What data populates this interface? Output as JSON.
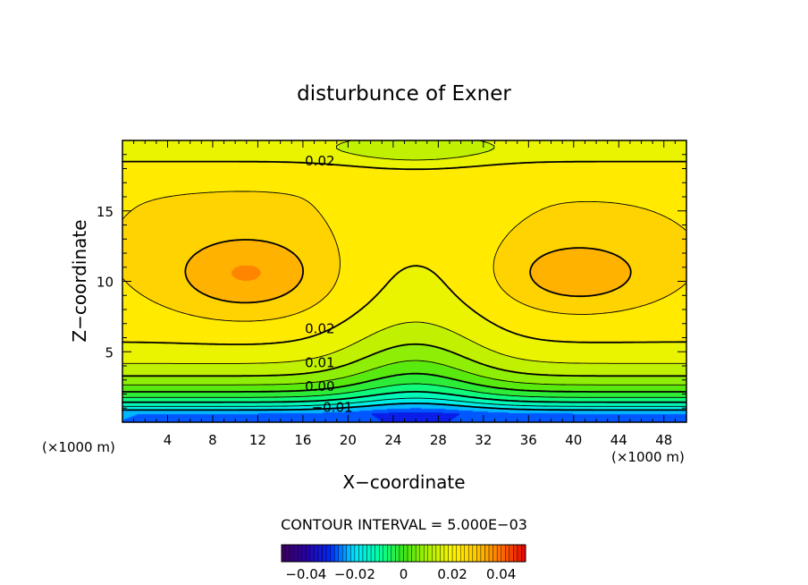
{
  "chart_data": {
    "type": "contour",
    "title": "disturbunce of Exner",
    "xlabel": "X−coordinate",
    "ylabel": "Z−coordinate",
    "x_unit_label": "(×1000 m)",
    "z_unit_label": "(×1000 m)",
    "xlim": [
      0,
      50
    ],
    "ylim": [
      0,
      20
    ],
    "x_ticks": [
      4,
      8,
      12,
      16,
      20,
      24,
      28,
      32,
      36,
      40,
      44,
      48
    ],
    "x_tick_labels": [
      "4",
      "8",
      "12",
      "16",
      "20",
      "24",
      "28",
      "32",
      "36",
      "40",
      "44",
      "48"
    ],
    "y_ticks": [
      5,
      10,
      15
    ],
    "y_tick_labels": [
      "5",
      "10",
      "15"
    ],
    "contour_interval_text": "CONTOUR INTERVAL = 5.000E−03",
    "contour_labels": [
      {
        "text": "0.02",
        "x": 17.5,
        "z": 18.6
      },
      {
        "text": "0.02",
        "x": 17.5,
        "z": 6.7
      },
      {
        "text": "0.01",
        "x": 17.5,
        "z": 4.3
      },
      {
        "text": "0.00",
        "x": 17.5,
        "z": 2.6
      },
      {
        "text": "−0.01",
        "x": 18.6,
        "z": 1.1
      }
    ],
    "colorbar": {
      "range": [
        -0.05,
        0.05
      ],
      "ticks": [
        -0.04,
        -0.02,
        0,
        0.02,
        0.04
      ],
      "tick_labels": [
        "−0.04",
        "−0.02",
        "0",
        "0.02",
        "0.04"
      ],
      "colormap": "rainbow (purple → blue → cyan → green → yellow → orange → red)"
    },
    "field_description": "Exner function disturbance; minimum (about −0.02) at bottom center near x=26, maxima (about 0.035) near (x=11, z=10.5) and (x=40, z=10.5)"
  }
}
